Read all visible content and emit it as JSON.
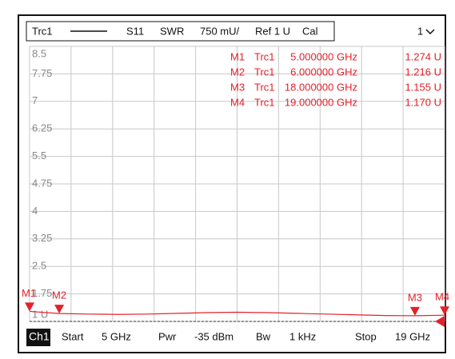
{
  "chart_data": {
    "type": "line",
    "header": {
      "trace": "Trc1",
      "parameter": "S11",
      "format": "SWR",
      "scale": "750 mU/",
      "ref": "Ref 1 U",
      "cal": "Cal",
      "window": "1"
    },
    "footer": {
      "channel": "Ch1",
      "start_label": "Start",
      "start": "5 GHz",
      "power_label": "Pwr",
      "power": "-35 dBm",
      "bw_label": "Bw",
      "bw": "1 kHz",
      "stop_label": "Stop",
      "stop": "19 GHz"
    },
    "xlim": [
      5,
      19
    ],
    "xticks": [
      5,
      6.4,
      7.8,
      9.2,
      10.6,
      12,
      13.4,
      14.8,
      16.2,
      17.6,
      19
    ],
    "ylim": [
      1,
      8.5
    ],
    "yticks": [
      1,
      1.75,
      2.5,
      3.25,
      4,
      4.75,
      5.5,
      6.25,
      7,
      7.75,
      8.5
    ],
    "ytick_labels": [
      {
        "value": 1,
        "label": "1 U"
      }
    ],
    "grid": true,
    "x": [
      5,
      6,
      7,
      8,
      9,
      10,
      11,
      12,
      13,
      14,
      15,
      16,
      17,
      18,
      19
    ],
    "series": [
      {
        "name": "Trc1",
        "color": "#e3212b",
        "values": [
          1.274,
          1.216,
          1.2,
          1.19,
          1.2,
          1.22,
          1.24,
          1.25,
          1.24,
          1.22,
          1.2,
          1.18,
          1.16,
          1.155,
          1.17
        ]
      }
    ],
    "markers": [
      {
        "name": "M1",
        "trace": "Trc1",
        "x": 5,
        "x_label": "5.000000 GHz",
        "value": 1.274,
        "value_label": "1.274 U"
      },
      {
        "name": "M2",
        "trace": "Trc1",
        "x": 6,
        "x_label": "6.000000 GHz",
        "value": 1.216,
        "value_label": "1.216 U"
      },
      {
        "name": "M3",
        "trace": "Trc1",
        "x": 18,
        "x_label": "18.000000 GHz",
        "value": 1.155,
        "value_label": "1.155 U"
      },
      {
        "name": "M4",
        "trace": "Trc1",
        "x": 19,
        "x_label": "19.000000 GHz",
        "value": 1.17,
        "value_label": "1.170 U"
      }
    ]
  }
}
